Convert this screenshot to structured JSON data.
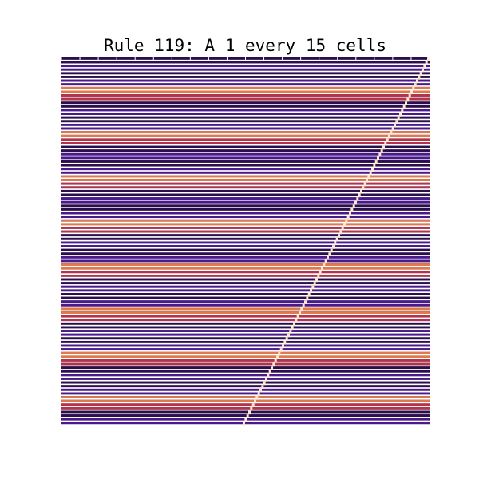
{
  "figure": {
    "title": "Rule 119: A 1 every 15 cells"
  },
  "automaton": {
    "rule": 119,
    "width": 100,
    "generations": 100,
    "seed_spacing": 15,
    "colors": {
      "band_dark": "#2a0f4a",
      "band_purple": "#4a1a8c",
      "band_orange": "#e07a4a",
      "band_red": "#b3344a",
      "line": "#ffffff",
      "diagonal": "#ffe8d0"
    }
  }
}
